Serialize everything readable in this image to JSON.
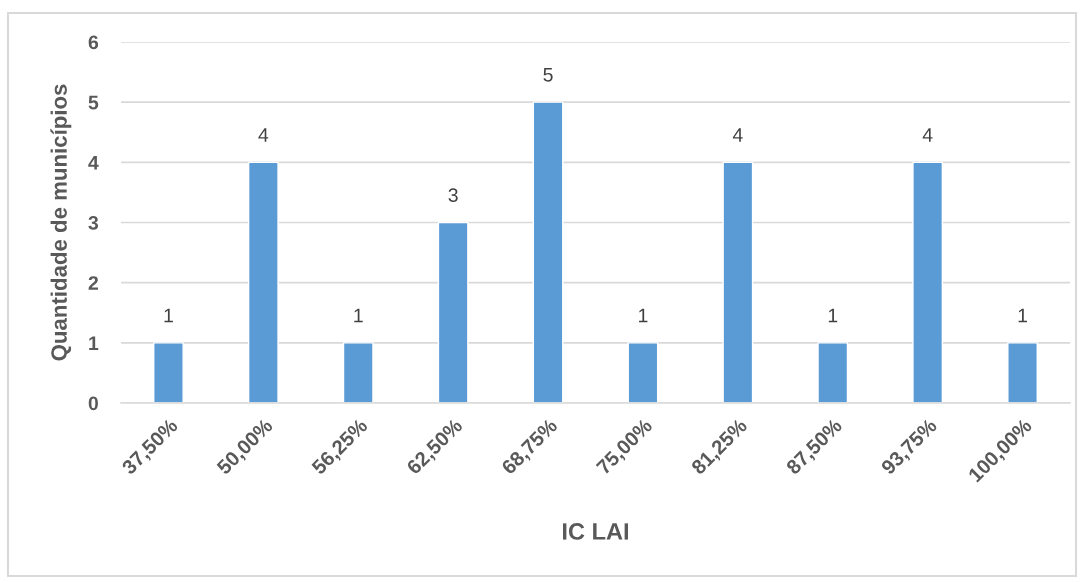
{
  "chart_data": {
    "type": "bar",
    "xlabel": "IC LAI",
    "ylabel": "Quantidade de municípios",
    "categories": [
      "37,50%",
      "50,00%",
      "56,25%",
      "62,50%",
      "68,75%",
      "75,00%",
      "81,25%",
      "87,50%",
      "93,75%",
      "100,00%"
    ],
    "values": [
      1,
      4,
      1,
      3,
      5,
      1,
      4,
      1,
      4,
      1
    ],
    "color": "#5b9bd5",
    "ylim": [
      0,
      6
    ],
    "yticks": [
      0,
      1,
      2,
      3,
      4,
      5,
      6
    ],
    "grid": "y",
    "data_labels": true
  }
}
